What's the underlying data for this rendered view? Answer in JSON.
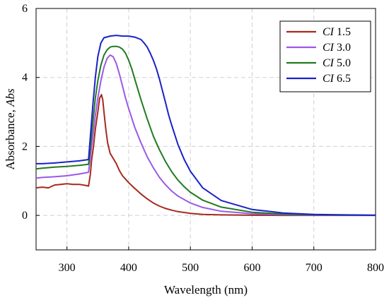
{
  "chart_data": {
    "type": "line",
    "title": "",
    "xlabel": "Wavelength (nm)",
    "ylabel_prefix": "Absorbance, ",
    "ylabel_italic": "Abs",
    "xlim": [
      250,
      800
    ],
    "ylim": [
      -1,
      6
    ],
    "xticks": [
      300,
      400,
      500,
      600,
      700,
      800
    ],
    "yticks": [
      0,
      2,
      4,
      6
    ],
    "grid": true,
    "legend_position": "top-right",
    "series": [
      {
        "name_italic": "CI",
        "name_value": "1.5",
        "color": "#a52a1e",
        "x": [
          250,
          260,
          270,
          280,
          290,
          300,
          310,
          320,
          330,
          335,
          338,
          340,
          343,
          346,
          350,
          353,
          356,
          358,
          360,
          363,
          366,
          370,
          375,
          380,
          385,
          390,
          395,
          400,
          410,
          420,
          430,
          440,
          450,
          460,
          470,
          480,
          500,
          520,
          550,
          600,
          650,
          700,
          750,
          800
        ],
        "y": [
          0.8,
          0.82,
          0.8,
          0.88,
          0.9,
          0.92,
          0.9,
          0.9,
          0.87,
          0.85,
          1.2,
          1.6,
          2.0,
          2.5,
          3.0,
          3.4,
          3.5,
          3.35,
          3.0,
          2.5,
          2.1,
          1.8,
          1.65,
          1.5,
          1.3,
          1.15,
          1.05,
          0.95,
          0.78,
          0.62,
          0.48,
          0.36,
          0.27,
          0.2,
          0.15,
          0.11,
          0.06,
          0.03,
          0.015,
          0.005,
          0.0,
          0.0,
          0.0,
          0.0
        ]
      },
      {
        "name_italic": "CI",
        "name_value": "3.0",
        "color": "#9b59e6",
        "x": [
          250,
          260,
          280,
          300,
          320,
          335,
          338,
          342,
          346,
          350,
          355,
          360,
          365,
          370,
          375,
          380,
          385,
          390,
          395,
          400,
          410,
          420,
          430,
          440,
          450,
          460,
          470,
          480,
          500,
          520,
          550,
          600,
          650,
          700,
          750,
          800
        ],
        "y": [
          1.08,
          1.1,
          1.12,
          1.15,
          1.2,
          1.25,
          1.7,
          2.3,
          2.9,
          3.4,
          3.9,
          4.3,
          4.55,
          4.65,
          4.6,
          4.4,
          4.1,
          3.75,
          3.4,
          3.1,
          2.55,
          2.1,
          1.7,
          1.38,
          1.1,
          0.88,
          0.7,
          0.56,
          0.36,
          0.23,
          0.12,
          0.05,
          0.02,
          0.01,
          0.005,
          0.0
        ]
      },
      {
        "name_italic": "CI",
        "name_value": "5.0",
        "color": "#217a1f",
        "x": [
          250,
          260,
          280,
          300,
          320,
          335,
          338,
          342,
          346,
          350,
          355,
          360,
          365,
          370,
          375,
          380,
          385,
          390,
          395,
          400,
          405,
          410,
          420,
          430,
          440,
          450,
          460,
          470,
          480,
          490,
          500,
          520,
          550,
          600,
          650,
          700,
          750,
          800
        ],
        "y": [
          1.35,
          1.37,
          1.4,
          1.42,
          1.45,
          1.48,
          2.0,
          2.7,
          3.4,
          3.9,
          4.35,
          4.65,
          4.8,
          4.88,
          4.9,
          4.9,
          4.88,
          4.82,
          4.7,
          4.5,
          4.25,
          3.95,
          3.35,
          2.8,
          2.3,
          1.9,
          1.55,
          1.26,
          1.02,
          0.83,
          0.67,
          0.44,
          0.24,
          0.09,
          0.04,
          0.02,
          0.01,
          0.005
        ]
      },
      {
        "name_italic": "CI",
        "name_value": "6.5",
        "color": "#1a22c8",
        "x": [
          250,
          260,
          280,
          300,
          320,
          335,
          338,
          342,
          346,
          350,
          355,
          360,
          370,
          380,
          390,
          400,
          410,
          420,
          425,
          430,
          435,
          440,
          445,
          450,
          455,
          460,
          465,
          470,
          480,
          490,
          500,
          520,
          550,
          600,
          650,
          700,
          750,
          800
        ],
        "y": [
          1.5,
          1.5,
          1.52,
          1.55,
          1.58,
          1.62,
          2.3,
          3.2,
          4.0,
          4.6,
          5.0,
          5.15,
          5.2,
          5.22,
          5.2,
          5.2,
          5.17,
          5.1,
          5.0,
          4.88,
          4.7,
          4.5,
          4.25,
          3.95,
          3.6,
          3.25,
          2.9,
          2.6,
          2.05,
          1.62,
          1.28,
          0.8,
          0.43,
          0.17,
          0.07,
          0.03,
          0.015,
          0.005
        ]
      }
    ]
  }
}
